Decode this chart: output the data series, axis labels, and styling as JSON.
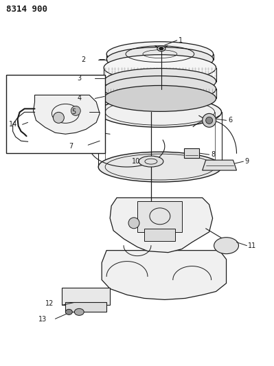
{
  "title_code": "8314 900",
  "bg": "#ffffff",
  "lc": "#1a1a1a",
  "figsize": [
    3.99,
    5.33
  ],
  "dpi": 100
}
